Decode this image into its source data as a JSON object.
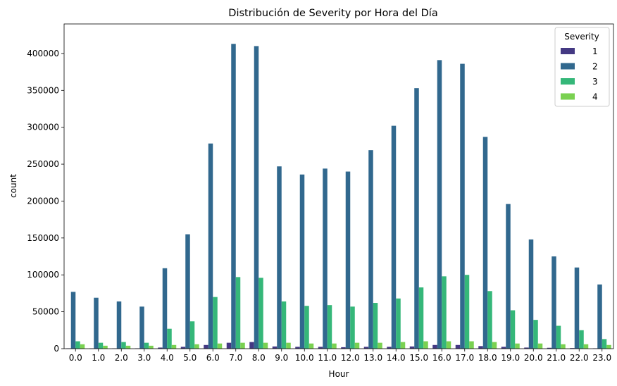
{
  "chart_data": {
    "type": "bar",
    "title": "Distribución de Severity por Hora del Día",
    "xlabel": "Hour",
    "ylabel": "count",
    "ylim": [
      0,
      440000
    ],
    "yticks": [
      0,
      50000,
      100000,
      150000,
      200000,
      250000,
      300000,
      350000,
      400000
    ],
    "categories": [
      "0.0",
      "1.0",
      "2.0",
      "3.0",
      "4.0",
      "5.0",
      "6.0",
      "7.0",
      "8.0",
      "9.0",
      "10.0",
      "11.0",
      "12.0",
      "13.0",
      "14.0",
      "15.0",
      "16.0",
      "17.0",
      "18.0",
      "19.0",
      "20.0",
      "21.0",
      "22.0",
      "23.0"
    ],
    "legend": {
      "title": "Severity",
      "position": "top-right"
    },
    "grid": false,
    "series": [
      {
        "name": "1",
        "color": "#443983",
        "values": [
          500,
          400,
          400,
          500,
          1500,
          2500,
          5000,
          8000,
          9000,
          3000,
          2500,
          2500,
          2000,
          2500,
          2500,
          3000,
          5000,
          5000,
          3500,
          2500,
          1500,
          1200,
          800,
          500
        ]
      },
      {
        "name": "2",
        "color": "#31688e",
        "values": [
          77000,
          69000,
          64000,
          57000,
          109000,
          155000,
          278000,
          413000,
          410000,
          247000,
          236000,
          244000,
          240000,
          269000,
          302000,
          353000,
          391000,
          386000,
          287000,
          196000,
          148000,
          125000,
          110000,
          87000
        ]
      },
      {
        "name": "3",
        "color": "#35b779",
        "values": [
          10000,
          8000,
          9000,
          8000,
          27000,
          37000,
          70000,
          97000,
          96000,
          64000,
          58000,
          59000,
          57000,
          62000,
          68000,
          83000,
          98000,
          100000,
          78000,
          52000,
          39000,
          31000,
          25000,
          13000
        ]
      },
      {
        "name": "4",
        "color": "#7ad151",
        "values": [
          6000,
          4000,
          4000,
          4000,
          5000,
          6000,
          7000,
          8000,
          8000,
          8000,
          7000,
          7000,
          8000,
          8000,
          9000,
          10000,
          10000,
          10000,
          9000,
          7000,
          7000,
          6000,
          6000,
          5000
        ]
      }
    ]
  }
}
